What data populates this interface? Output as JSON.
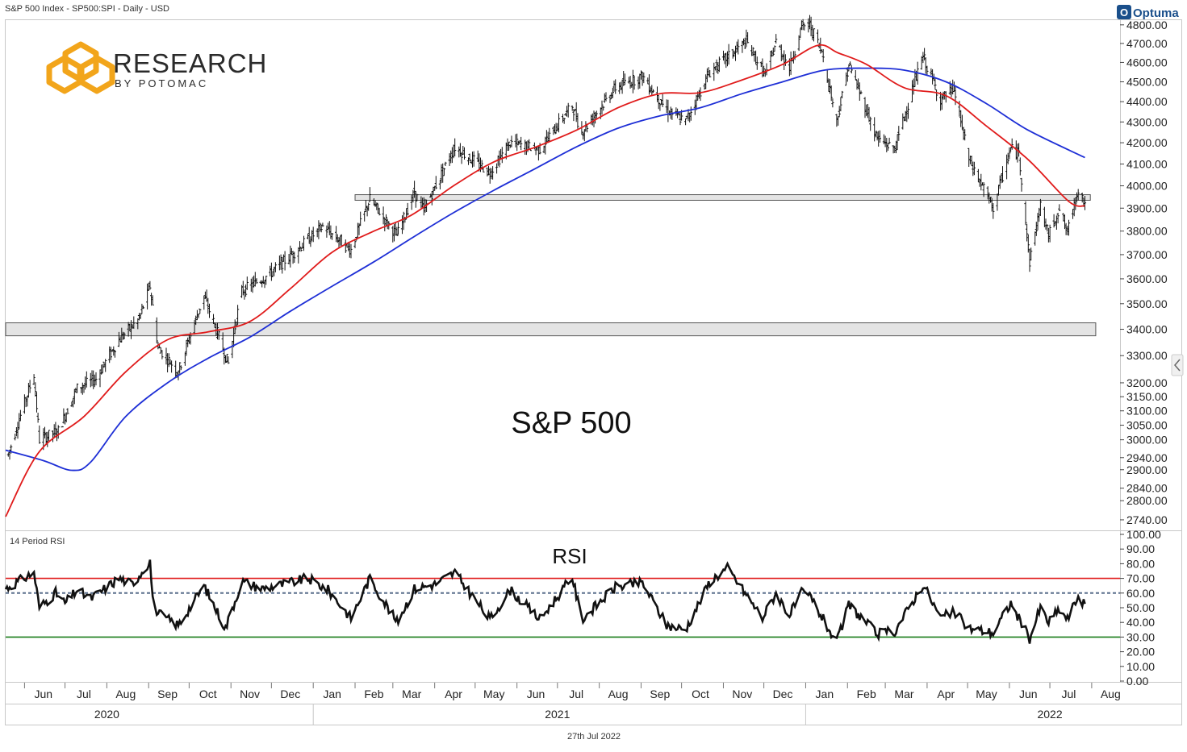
{
  "header": {
    "instrument": "S&P 500 Index  - SP500:SPI - Daily - USD",
    "optuma_label": "Optuma"
  },
  "logo": {
    "line1": "RESEARCH",
    "line2": "BY POTOMAC",
    "color": "#f2a51b"
  },
  "footer": {
    "date": "27th Jul 2022"
  },
  "chart_data": [
    {
      "type": "line",
      "subtype": "ohlc-bars",
      "title": "S&P 500",
      "y_ticks": [
        "2740.00",
        "2800.00",
        "2840.00",
        "2900.00",
        "2940.00",
        "3000.00",
        "3050.00",
        "3100.00",
        "3150.00",
        "3200.00",
        "3300.00",
        "3400.00",
        "3500.00",
        "3600.00",
        "3700.00",
        "3800.00",
        "3900.00",
        "4000.00",
        "4100.00",
        "4200.00",
        "4300.00",
        "4400.00",
        "4500.00",
        "4600.00",
        "4700.00",
        "4800.00"
      ],
      "y_scale": "log",
      "ylim": [
        2710,
        4830
      ],
      "x_range": [
        "2020-05-18",
        "2022-08-22"
      ],
      "colors": {
        "price": "#111111",
        "ma_short": "#e01b1b",
        "ma_long": "#1e2fd6",
        "zone_fill": "#e4e4e4",
        "zone_stroke": "#555555"
      },
      "price_keypoints": [
        [
          "2020-05-20",
          2950
        ],
        [
          "2020-06-08",
          3230
        ],
        [
          "2020-06-12",
          3000
        ],
        [
          "2020-06-26",
          3030
        ],
        [
          "2020-07-10",
          3180
        ],
        [
          "2020-07-24",
          3215
        ],
        [
          "2020-08-10",
          3360
        ],
        [
          "2020-08-25",
          3440
        ],
        [
          "2020-09-02",
          3570
        ],
        [
          "2020-09-08",
          3330
        ],
        [
          "2020-09-23",
          3240
        ],
        [
          "2020-10-12",
          3530
        ],
        [
          "2020-10-30",
          3270
        ],
        [
          "2020-11-09",
          3550
        ],
        [
          "2020-11-30",
          3620
        ],
        [
          "2020-12-18",
          3710
        ],
        [
          "2021-01-08",
          3820
        ],
        [
          "2021-01-29",
          3720
        ],
        [
          "2021-02-12",
          3940
        ],
        [
          "2021-03-04",
          3780
        ],
        [
          "2021-03-17",
          3970
        ],
        [
          "2021-03-24",
          3890
        ],
        [
          "2021-04-16",
          4180
        ],
        [
          "2021-05-12",
          4060
        ],
        [
          "2021-05-27",
          4200
        ],
        [
          "2021-06-18",
          4170
        ],
        [
          "2021-07-12",
          4380
        ],
        [
          "2021-07-19",
          4250
        ],
        [
          "2021-08-13",
          4470
        ],
        [
          "2021-09-02",
          4530
        ],
        [
          "2021-09-20",
          4360
        ],
        [
          "2021-10-04",
          4300
        ],
        [
          "2021-10-22",
          4550
        ],
        [
          "2021-11-18",
          4710
        ],
        [
          "2021-11-30",
          4560
        ],
        [
          "2021-12-03",
          4540
        ],
        [
          "2021-12-10",
          4710
        ],
        [
          "2021-12-20",
          4570
        ],
        [
          "2021-12-29",
          4790
        ],
        [
          "2022-01-04",
          4800
        ],
        [
          "2022-01-13",
          4660
        ],
        [
          "2022-01-24",
          4300
        ],
        [
          "2022-02-02",
          4590
        ],
        [
          "2022-02-23",
          4220
        ],
        [
          "2022-03-08",
          4170
        ],
        [
          "2022-03-29",
          4630
        ],
        [
          "2022-04-11",
          4410
        ],
        [
          "2022-04-21",
          4460
        ],
        [
          "2022-05-02",
          4120
        ],
        [
          "2022-05-20",
          3900
        ],
        [
          "2022-06-02",
          4170
        ],
        [
          "2022-06-08",
          4150
        ],
        [
          "2022-06-16",
          3670
        ],
        [
          "2022-06-24",
          3910
        ],
        [
          "2022-06-30",
          3780
        ],
        [
          "2022-07-08",
          3900
        ],
        [
          "2022-07-14",
          3790
        ],
        [
          "2022-07-22",
          3990
        ],
        [
          "2022-07-27",
          3920
        ]
      ],
      "ma_short_keypoints": [
        [
          "2020-05-18",
          2750
        ],
        [
          "2020-06-12",
          2960
        ],
        [
          "2020-07-15",
          3080
        ],
        [
          "2020-08-15",
          3240
        ],
        [
          "2020-09-15",
          3360
        ],
        [
          "2020-10-15",
          3390
        ],
        [
          "2020-11-15",
          3430
        ],
        [
          "2020-12-15",
          3560
        ],
        [
          "2021-01-15",
          3710
        ],
        [
          "2021-02-15",
          3800
        ],
        [
          "2021-03-15",
          3870
        ],
        [
          "2021-04-15",
          4000
        ],
        [
          "2021-05-15",
          4110
        ],
        [
          "2021-06-15",
          4180
        ],
        [
          "2021-07-15",
          4260
        ],
        [
          "2021-08-15",
          4370
        ],
        [
          "2021-09-15",
          4440
        ],
        [
          "2021-10-15",
          4445
        ],
        [
          "2021-11-15",
          4510
        ],
        [
          "2021-12-15",
          4590
        ],
        [
          "2022-01-10",
          4690
        ],
        [
          "2022-01-25",
          4650
        ],
        [
          "2022-02-15",
          4590
        ],
        [
          "2022-03-15",
          4470
        ],
        [
          "2022-04-15",
          4430
        ],
        [
          "2022-05-15",
          4280
        ],
        [
          "2022-06-15",
          4120
        ],
        [
          "2022-07-15",
          3930
        ],
        [
          "2022-07-27",
          3910
        ]
      ],
      "ma_long_keypoints": [
        [
          "2020-05-18",
          2965
        ],
        [
          "2020-06-15",
          2930
        ],
        [
          "2020-07-06",
          2898
        ],
        [
          "2020-07-20",
          2925
        ],
        [
          "2020-08-15",
          3080
        ],
        [
          "2020-09-15",
          3200
        ],
        [
          "2020-10-15",
          3290
        ],
        [
          "2020-11-15",
          3370
        ],
        [
          "2020-12-15",
          3470
        ],
        [
          "2021-01-15",
          3570
        ],
        [
          "2021-02-15",
          3670
        ],
        [
          "2021-03-15",
          3770
        ],
        [
          "2021-04-15",
          3880
        ],
        [
          "2021-05-15",
          3980
        ],
        [
          "2021-06-15",
          4080
        ],
        [
          "2021-07-15",
          4180
        ],
        [
          "2021-08-15",
          4270
        ],
        [
          "2021-09-15",
          4330
        ],
        [
          "2021-10-15",
          4370
        ],
        [
          "2021-11-15",
          4440
        ],
        [
          "2021-12-15",
          4500
        ],
        [
          "2022-01-15",
          4560
        ],
        [
          "2022-02-15",
          4570
        ],
        [
          "2022-03-15",
          4560
        ],
        [
          "2022-04-15",
          4500
        ],
        [
          "2022-05-15",
          4390
        ],
        [
          "2022-06-15",
          4260
        ],
        [
          "2022-07-27",
          4130
        ]
      ],
      "zones": [
        {
          "from": 3935,
          "to": 3960,
          "x_start": "2021-02-01",
          "x_end": "2022-07-31"
        },
        {
          "from": 3375,
          "to": 3425,
          "x_start": "2020-05-18",
          "x_end": "2022-08-04"
        }
      ]
    },
    {
      "type": "line",
      "label": "14 Period RSI",
      "title": "RSI",
      "y_ticks": [
        "0.00",
        "10.00",
        "20.00",
        "30.00",
        "40.00",
        "50.00",
        "60.00",
        "70.00",
        "80.00",
        "90.00",
        "100.00"
      ],
      "ylim": [
        0,
        100
      ],
      "overbought": 70,
      "midline": 60,
      "oversold": 30,
      "colors": {
        "rsi": "#111111",
        "overbought": "#e01b1b",
        "midline": "#5a6f8c",
        "oversold": "#1a7d1a"
      },
      "rsi_keypoints": [
        [
          "2020-05-18",
          63
        ],
        [
          "2020-06-08",
          74
        ],
        [
          "2020-06-12",
          50
        ],
        [
          "2020-06-24",
          60
        ],
        [
          "2020-07-01",
          53
        ],
        [
          "2020-07-10",
          62
        ],
        [
          "2020-07-20",
          56
        ],
        [
          "2020-08-10",
          70
        ],
        [
          "2020-08-20",
          66
        ],
        [
          "2020-09-02",
          82
        ],
        [
          "2020-09-04",
          55
        ],
        [
          "2020-09-08",
          46
        ],
        [
          "2020-09-23",
          38
        ],
        [
          "2020-10-12",
          65
        ],
        [
          "2020-10-28",
          36
        ],
        [
          "2020-11-09",
          68
        ],
        [
          "2020-11-24",
          63
        ],
        [
          "2020-12-10",
          66
        ],
        [
          "2020-12-28",
          70
        ],
        [
          "2021-01-12",
          62
        ],
        [
          "2021-01-29",
          43
        ],
        [
          "2021-02-12",
          70
        ],
        [
          "2021-03-04",
          40
        ],
        [
          "2021-03-17",
          63
        ],
        [
          "2021-04-01",
          66
        ],
        [
          "2021-04-16",
          74
        ],
        [
          "2021-05-12",
          42
        ],
        [
          "2021-05-27",
          62
        ],
        [
          "2021-06-18",
          42
        ],
        [
          "2021-07-12",
          71
        ],
        [
          "2021-07-19",
          42
        ],
        [
          "2021-08-13",
          64
        ],
        [
          "2021-09-02",
          67
        ],
        [
          "2021-09-20",
          38
        ],
        [
          "2021-10-04",
          35
        ],
        [
          "2021-10-22",
          68
        ],
        [
          "2021-11-04",
          77
        ],
        [
          "2021-11-30",
          43
        ],
        [
          "2021-12-10",
          60
        ],
        [
          "2021-12-20",
          45
        ],
        [
          "2021-12-29",
          60
        ],
        [
          "2022-01-04",
          58
        ],
        [
          "2022-01-24",
          26
        ],
        [
          "2022-02-02",
          52
        ],
        [
          "2022-02-23",
          32
        ],
        [
          "2022-03-08",
          34
        ],
        [
          "2022-03-29",
          66
        ],
        [
          "2022-04-11",
          43
        ],
        [
          "2022-04-21",
          47
        ],
        [
          "2022-05-02",
          36
        ],
        [
          "2022-05-20",
          33
        ],
        [
          "2022-06-02",
          53
        ],
        [
          "2022-06-16",
          29
        ],
        [
          "2022-06-24",
          50
        ],
        [
          "2022-06-30",
          40
        ],
        [
          "2022-07-08",
          49
        ],
        [
          "2022-07-14",
          42
        ],
        [
          "2022-07-22",
          58
        ],
        [
          "2022-07-27",
          52
        ]
      ]
    }
  ],
  "x_axis": {
    "months": [
      {
        "label": "Jun",
        "date": "2020-06-15"
      },
      {
        "label": "Jul",
        "date": "2020-07-15"
      },
      {
        "label": "Aug",
        "date": "2020-08-15"
      },
      {
        "label": "Sep",
        "date": "2020-09-15"
      },
      {
        "label": "Oct",
        "date": "2020-10-15"
      },
      {
        "label": "Nov",
        "date": "2020-11-15"
      },
      {
        "label": "Dec",
        "date": "2020-12-15"
      },
      {
        "label": "Jan",
        "date": "2021-01-15"
      },
      {
        "label": "Feb",
        "date": "2021-02-15"
      },
      {
        "label": "Mar",
        "date": "2021-03-15"
      },
      {
        "label": "Apr",
        "date": "2021-04-15"
      },
      {
        "label": "May",
        "date": "2021-05-15"
      },
      {
        "label": "Jun",
        "date": "2021-06-15"
      },
      {
        "label": "Jul",
        "date": "2021-07-15"
      },
      {
        "label": "Aug",
        "date": "2021-08-15"
      },
      {
        "label": "Sep",
        "date": "2021-09-15"
      },
      {
        "label": "Oct",
        "date": "2021-10-15"
      },
      {
        "label": "Nov",
        "date": "2021-11-15"
      },
      {
        "label": "Dec",
        "date": "2021-12-15"
      },
      {
        "label": "Jan",
        "date": "2022-01-15"
      },
      {
        "label": "Feb",
        "date": "2022-02-15"
      },
      {
        "label": "Mar",
        "date": "2022-03-15"
      },
      {
        "label": "Apr",
        "date": "2022-04-15"
      },
      {
        "label": "May",
        "date": "2022-05-15"
      },
      {
        "label": "Jun",
        "date": "2022-06-15"
      },
      {
        "label": "Jul",
        "date": "2022-07-15"
      },
      {
        "label": "Aug",
        "date": "2022-08-15"
      }
    ],
    "years": [
      {
        "label": "2020",
        "date": "2020-08-01"
      },
      {
        "label": "2021",
        "date": "2021-07-01"
      },
      {
        "label": "2022",
        "date": "2022-07-01"
      }
    ]
  }
}
